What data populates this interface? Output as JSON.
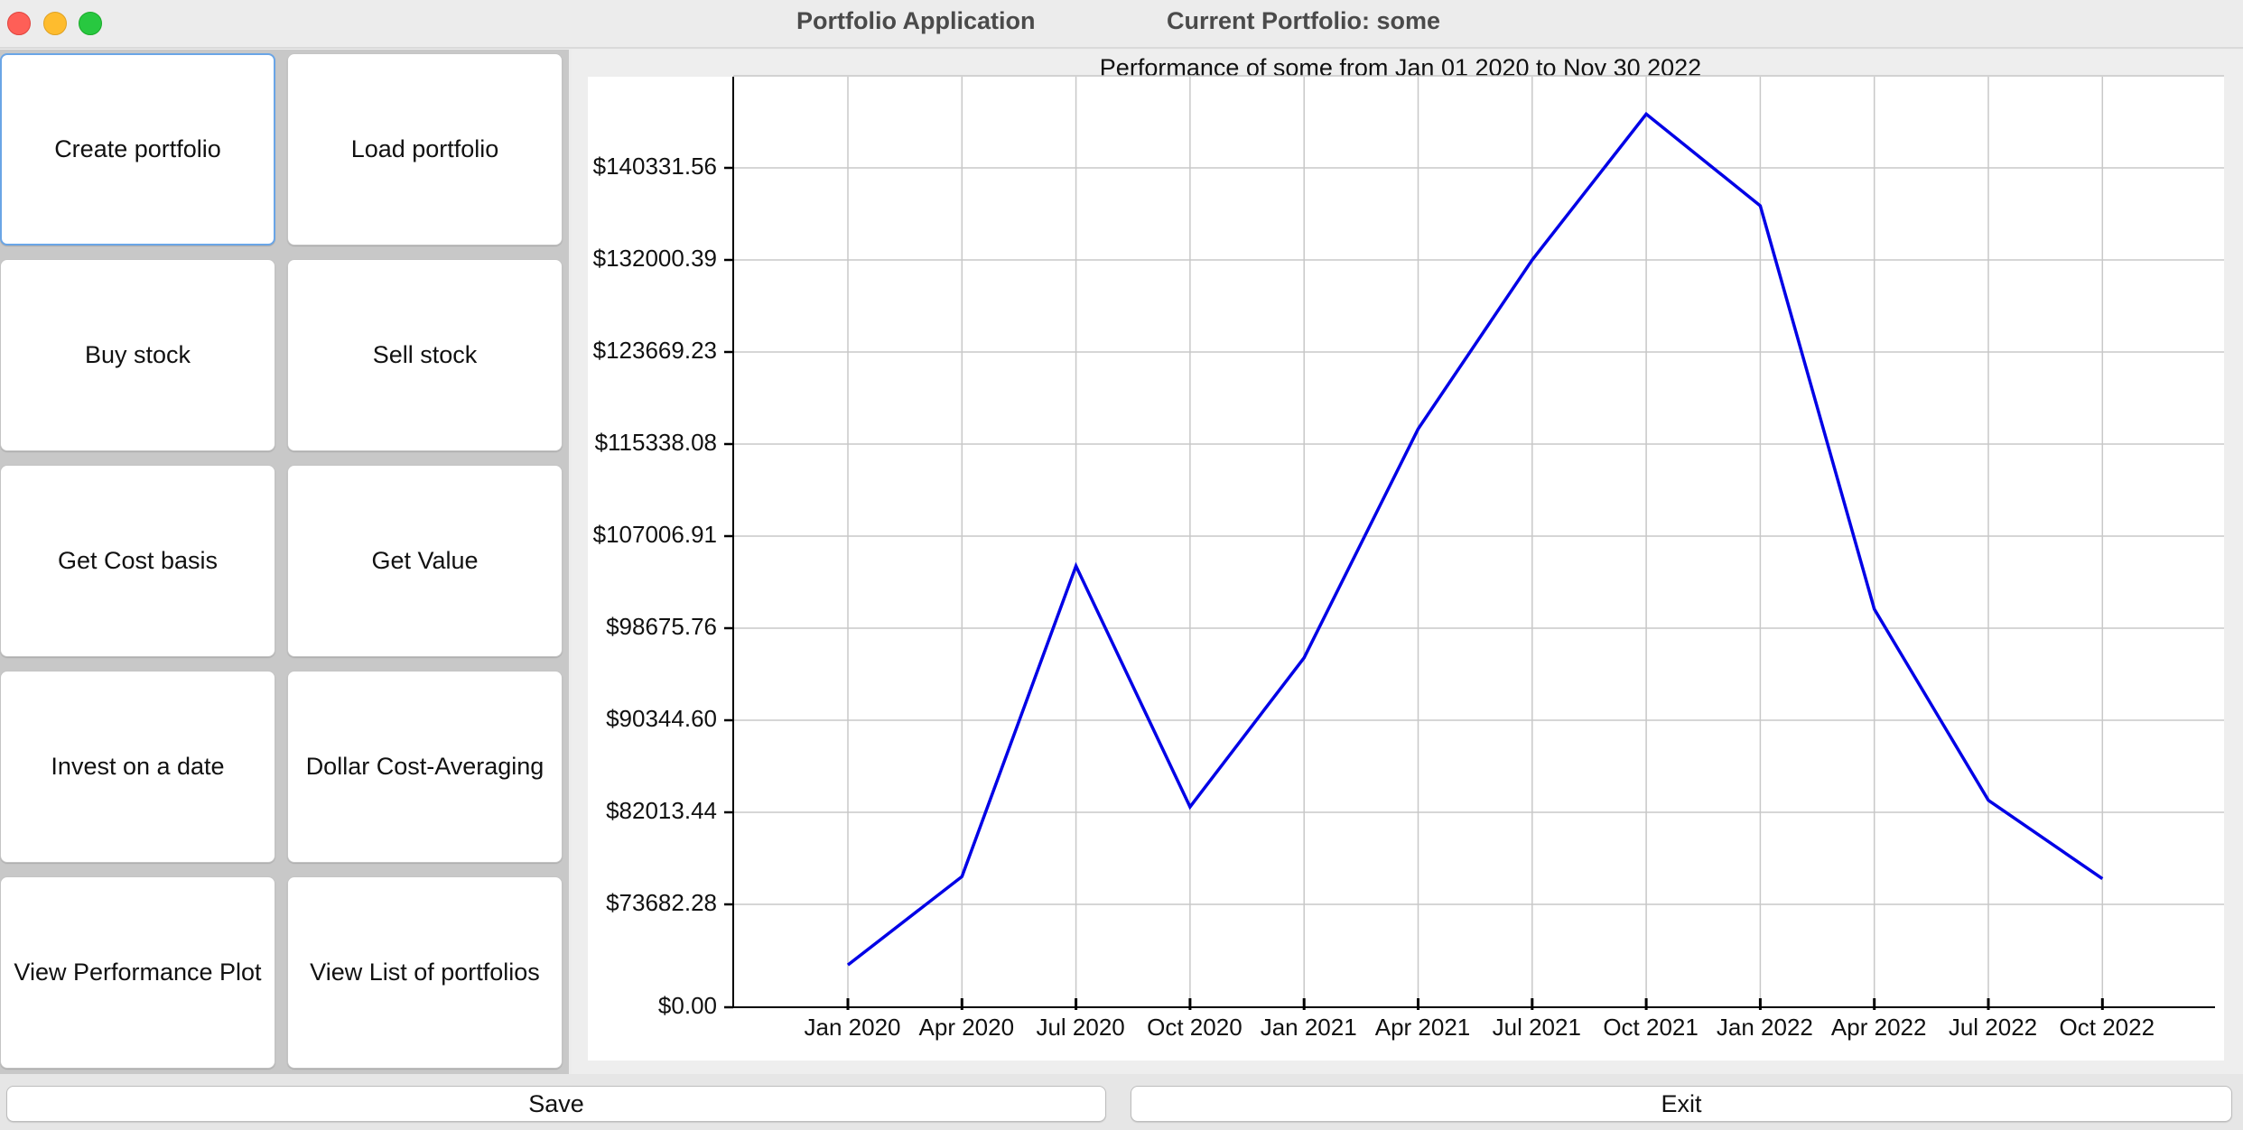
{
  "window": {
    "title": "Portfolio Application",
    "current_portfolio": "Current Portfolio: some"
  },
  "actions": [
    "Create portfolio",
    "Load portfolio",
    "Buy stock",
    "Sell stock",
    "Get Cost basis",
    "Get Value",
    "Invest on a date",
    "Dollar Cost-Averaging",
    "View Performance Plot",
    "View List of portfolios"
  ],
  "footer": {
    "save_label": "Save",
    "exit_label": "Exit"
  },
  "colors": {
    "line": "#0000e6",
    "focus_ring": "#6aa5e6"
  },
  "chart_data": {
    "type": "line",
    "title": "Performance of some from Jan 01 2020 to Nov 30 2022",
    "categories": [
      "Jan 2020",
      "Apr 2020",
      "Jul 2020",
      "Oct 2020",
      "Jan 2021",
      "Apr 2021",
      "Jul 2021",
      "Oct 2021",
      "Jan 2022",
      "Apr 2022",
      "Jul 2022",
      "Oct 2022"
    ],
    "values": [
      68200,
      76200,
      104300,
      82500,
      96000,
      116700,
      132000,
      145200,
      136900,
      100400,
      83100,
      76000
    ],
    "y_ticks": [
      "$0.00",
      "$73682.28",
      "$82013.44",
      "$90344.60",
      "$98675.76",
      "$107006.91",
      "$115338.08",
      "$123669.23",
      "$132000.39",
      "$140331.56"
    ],
    "y_tick_values": [
      0,
      73682.28,
      82013.44,
      90344.6,
      98675.76,
      107006.91,
      115338.08,
      123669.23,
      132000.39,
      140331.56
    ],
    "grid": true,
    "legend": "none"
  }
}
